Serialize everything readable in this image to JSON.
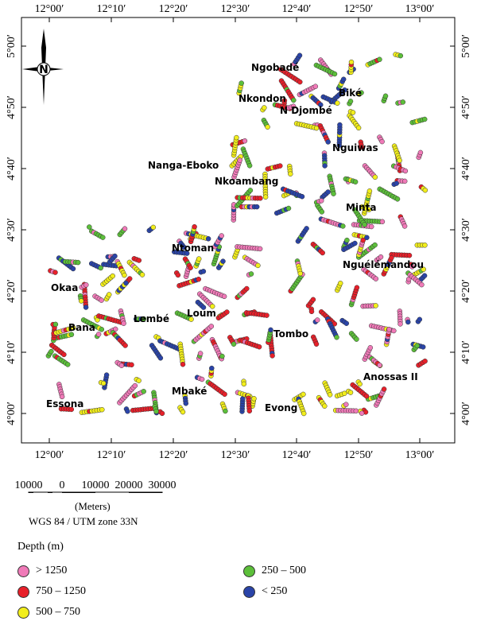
{
  "map": {
    "lon_ticks": [
      "12°00′",
      "12°10′",
      "12°20′",
      "12°30′",
      "12°40′",
      "12°50′",
      "13°00′"
    ],
    "lat_ticks": [
      "5°00′",
      "4°50′",
      "4°40′",
      "4°30′",
      "4°20′",
      "4°10′",
      "4°00′"
    ],
    "places": [
      "Ngobadé",
      "Nkondon",
      "Biké",
      "N Djombé",
      "Nguiwas",
      "Nanga-Eboko",
      "Nkoambang",
      "Minta",
      "Ntoman",
      "Nguélémandou",
      "Okaa",
      "Lembé",
      "Loum",
      "Bana",
      "Tombo",
      "Anossas II",
      "Mbaké",
      "Essona",
      "Evong"
    ],
    "north_label": "N"
  },
  "scale_bar": {
    "tick_labels": [
      "10000",
      "0",
      "10000",
      "20000",
      "30000"
    ],
    "units": "(Meters)",
    "projection": "WGS 84 / UTM zone 33N"
  },
  "legend": {
    "title": "Depth (m)",
    "items": [
      {
        "label": "> 1250",
        "color": "#f07ab8"
      },
      {
        "label": "750 – 1250",
        "color": "#e8202a"
      },
      {
        "label": "500 – 750",
        "color": "#f2ee1c"
      },
      {
        "label": "250 – 500",
        "color": "#5cbf3a"
      },
      {
        "label": "< 250",
        "color": "#2a44a8"
      }
    ]
  }
}
